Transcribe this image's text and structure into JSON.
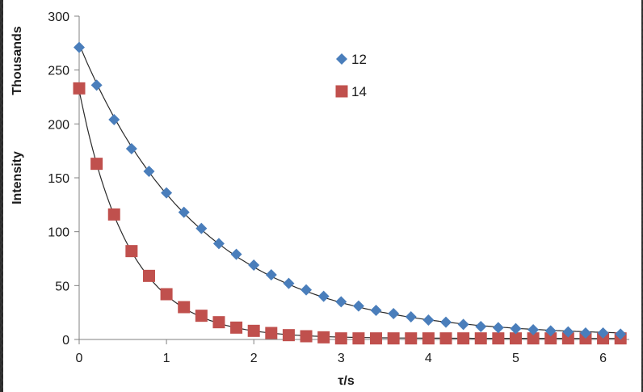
{
  "chart_data": {
    "type": "scatter",
    "title": "",
    "xlabel": "τ/s",
    "ylabel": "Intensity",
    "yunit_label": "Thousands",
    "xlim": [
      0,
      6.3
    ],
    "ylim": [
      0,
      300
    ],
    "xticks": [
      "0",
      "1",
      "2",
      "3",
      "4",
      "5",
      "6"
    ],
    "yticks": [
      "0",
      "50",
      "100",
      "150",
      "200",
      "250",
      "300"
    ],
    "grid": false,
    "legend_position": "top-center",
    "series": [
      {
        "name": "12",
        "marker": "diamond",
        "color": "#4a7ebb",
        "x": [
          0,
          0.2,
          0.4,
          0.6,
          0.8,
          1.0,
          1.2,
          1.4,
          1.6,
          1.8,
          2.0,
          2.2,
          2.4,
          2.6,
          2.8,
          3.0,
          3.2,
          3.4,
          3.6,
          3.8,
          4.0,
          4.2,
          4.4,
          4.6,
          4.8,
          5.0,
          5.2,
          5.4,
          5.6,
          5.8,
          6.0,
          6.2
        ],
        "y": [
          271,
          236,
          204,
          177,
          156,
          136,
          118,
          103,
          89,
          79,
          69,
          60,
          52,
          46,
          40,
          35,
          31,
          27,
          24,
          21,
          18,
          16,
          14,
          12,
          11,
          10,
          9,
          8,
          7,
          6,
          6,
          5
        ]
      },
      {
        "name": "14",
        "marker": "square",
        "color": "#c0504d",
        "x": [
          0,
          0.2,
          0.4,
          0.6,
          0.8,
          1.0,
          1.2,
          1.4,
          1.6,
          1.8,
          2.0,
          2.2,
          2.4,
          2.6,
          2.8,
          3.0,
          3.2,
          3.4,
          3.6,
          3.8,
          4.0,
          4.2,
          4.4,
          4.6,
          4.8,
          5.0,
          5.2,
          5.4,
          5.6,
          5.8,
          6.0,
          6.2
        ],
        "y": [
          233,
          163,
          116,
          82,
          59,
          42,
          30,
          22,
          16,
          11,
          8,
          6,
          4,
          3,
          2,
          1,
          1,
          1,
          1,
          1,
          1,
          1,
          1,
          1,
          1,
          1,
          1,
          1,
          1,
          1,
          1,
          1
        ]
      }
    ],
    "fit_curves": [
      {
        "series": "12",
        "amplitude": 271,
        "rate": 0.72,
        "offset": 3
      },
      {
        "series": "14",
        "amplitude": 230,
        "rate": 1.75,
        "offset": 1
      }
    ]
  }
}
